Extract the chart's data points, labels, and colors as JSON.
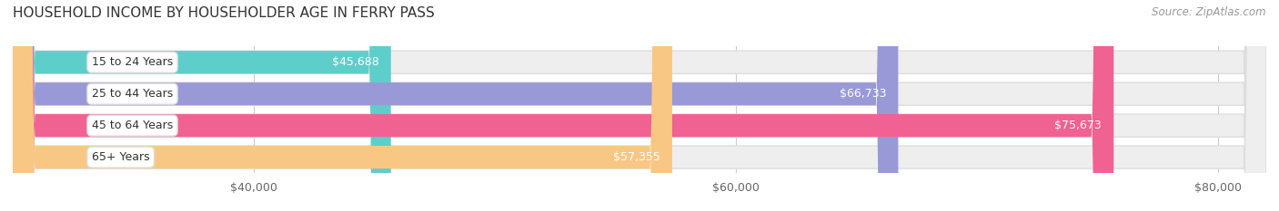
{
  "title": "HOUSEHOLD INCOME BY HOUSEHOLDER AGE IN FERRY PASS",
  "source": "Source: ZipAtlas.com",
  "categories": [
    "15 to 24 Years",
    "25 to 44 Years",
    "45 to 64 Years",
    "65+ Years"
  ],
  "values": [
    45688,
    66733,
    75673,
    57355
  ],
  "labels": [
    "$45,688",
    "$66,733",
    "$75,673",
    "$57,355"
  ],
  "bar_colors": [
    "#5ececa",
    "#9999d8",
    "#f06292",
    "#f9c784"
  ],
  "xmin": 30000,
  "xmax": 82000,
  "xlim_left": 30000,
  "xlim_right": 82000,
  "xticks": [
    40000,
    60000,
    80000
  ],
  "xtick_labels": [
    "$40,000",
    "$60,000",
    "$80,000"
  ],
  "bar_height": 0.72,
  "bg_color": "#ffffff",
  "title_fontsize": 11,
  "label_fontsize": 9,
  "tick_fontsize": 9,
  "source_fontsize": 8.5,
  "grid_color": "#cccccc",
  "bar_bg_color": "#eeeeee",
  "label_color": "white",
  "category_fontsize": 9
}
